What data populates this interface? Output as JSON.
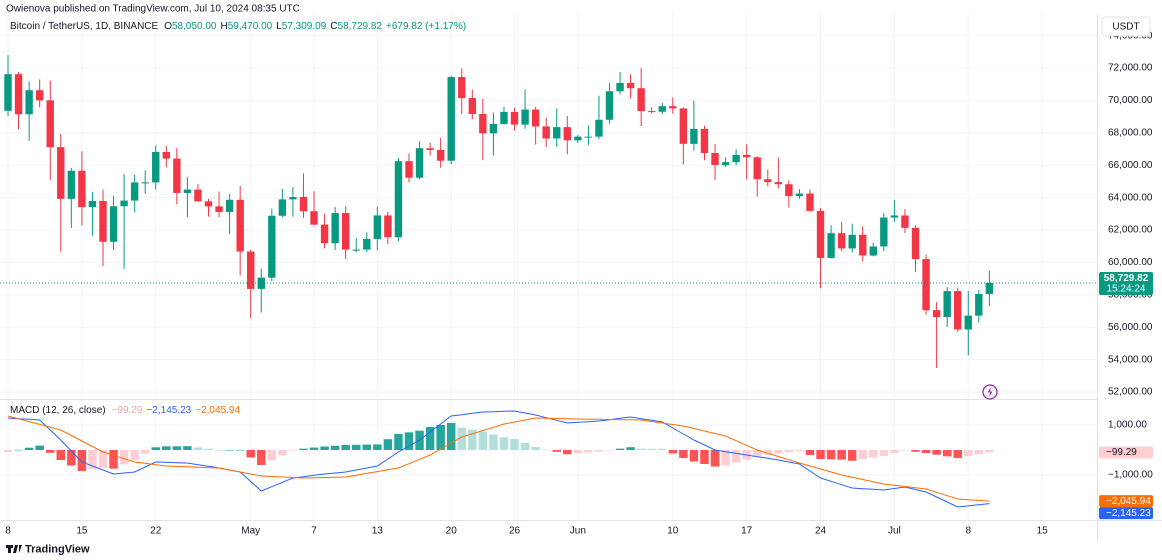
{
  "header": {
    "publisher": "Owienova published on TradingView.com, Jul 10, 2024 08:35 UTC",
    "brand": "TradingView"
  },
  "chart_data": [
    {
      "type": "candlestick",
      "title": "Bitcoin / TetherUS, 1D, BINANCE",
      "legend": [
        {
          "key": "O",
          "label": "58,050.00"
        },
        {
          "key": "H",
          "label": "59,470.00"
        },
        {
          "key": "L",
          "label": "57,309.09"
        },
        {
          "key": "C",
          "label": "58,729.82"
        }
      ],
      "change": "+679.82 (+1.17%)",
      "currency": "USDT",
      "countdown": "15:24:24",
      "up_color": "#089981",
      "down_color": "#f23645",
      "open": [
        69360,
        71620,
        69146,
        70631,
        70006,
        67116,
        63924,
        65661,
        63419,
        63793,
        61277,
        63470,
        63818,
        64941,
        64941,
        66819,
        66414,
        64289,
        64498,
        63770,
        63462,
        63118,
        63866,
        60672,
        58364,
        59060,
        62882,
        63892,
        64038,
        63161,
        62334,
        61187,
        63049,
        60792,
        60793,
        61448,
        62901,
        61552,
        66250,
        65231,
        67051,
        66940,
        66278,
        71446,
        70148,
        69166,
        67969,
        68549,
        69290,
        68507,
        69436,
        68398,
        67652,
        68352,
        67540,
        67766,
        67766,
        68809,
        70567,
        71082,
        70757,
        69342,
        69305,
        69648,
        69508,
        67321,
        68243,
        66756,
        66011,
        66191,
        66639,
        66490,
        65140,
        64960,
        64828,
        64096,
        64252,
        63180,
        60277,
        61806,
        60864,
        61706,
        60427,
        60986,
        62772,
        62899,
        62135,
        60208,
        57050,
        56628,
        58230,
        55857,
        56714,
        58050
      ],
      "high": [
        72797,
        71758,
        71172,
        71305,
        71227,
        67932,
        65840,
        66867,
        64365,
        64499,
        64125,
        65450,
        65419,
        65695,
        67233,
        67199,
        67075,
        65297,
        64837,
        63923,
        64370,
        64228,
        64734,
        60780,
        59625,
        63320,
        64545,
        64646,
        65494,
        64390,
        62999,
        63421,
        63469,
        61490,
        61850,
        63450,
        63118,
        66444,
        66720,
        67459,
        67400,
        67700,
        71515,
        71979,
        70666,
        70096,
        69250,
        69610,
        69562,
        70687,
        69591,
        68935,
        69500,
        69044,
        67857,
        68460,
        70288,
        71063,
        71758,
        71625,
        71997,
        69582,
        69852,
        70195,
        69563,
        69999,
        68449,
        67320,
        66495,
        66983,
        67298,
        66556,
        65738,
        66482,
        65067,
        64526,
        64520,
        63370,
        62293,
        62487,
        62389,
        62225,
        61224,
        63058,
        63861,
        63288,
        62285,
        60498,
        57546,
        58475,
        58449,
        58236,
        58296,
        59470
      ],
      "low": [
        69043,
        68210,
        67518,
        69567,
        65086,
        60660,
        62134,
        62274,
        61650,
        59768,
        60775,
        59600,
        63090,
        64240,
        64500,
        65865,
        63589,
        62795,
        63747,
        62824,
        62781,
        61765,
        59191,
        56552,
        56911,
        58848,
        62800,
        62822,
        62746,
        62285,
        60866,
        60769,
        60187,
        60628,
        60629,
        60750,
        61142,
        61330,
        64944,
        65119,
        66600,
        65857,
        66060,
        69163,
        68842,
        66312,
        66600,
        68500,
        68128,
        68250,
        67277,
        67124,
        67128,
        66670,
        67386,
        67257,
        67613,
        68567,
        70383,
        70119,
        68420,
        69208,
        69164,
        69180,
        66051,
        66902,
        66304,
        65078,
        65891,
        66000,
        65130,
        64066,
        64693,
        64559,
        63379,
        63929,
        63100,
        58402,
        60239,
        60712,
        60606,
        60063,
        60383,
        60712,
        62497,
        61806,
        59400,
        56771,
        53485,
        56018,
        55724,
        54260,
        56289,
        57309.09
      ],
      "close": [
        71620,
        69146,
        70631,
        70006,
        67116,
        63924,
        65661,
        63419,
        63793,
        61277,
        63470,
        63818,
        64941,
        64941,
        66819,
        66414,
        64289,
        64498,
        63770,
        63462,
        63118,
        63866,
        60672,
        58364,
        59060,
        62882,
        63892,
        64038,
        63161,
        62334,
        61187,
        63049,
        60792,
        60793,
        61448,
        62901,
        61552,
        66250,
        65231,
        67051,
        66940,
        66278,
        71446,
        70148,
        69166,
        67969,
        68549,
        69290,
        68507,
        69436,
        68398,
        67652,
        68352,
        67540,
        67766,
        67766,
        68809,
        70567,
        71082,
        70757,
        69342,
        69305,
        69648,
        69508,
        67321,
        68243,
        66756,
        66011,
        66191,
        66639,
        66490,
        65140,
        64960,
        64828,
        64096,
        64252,
        63180,
        60277,
        61806,
        60864,
        61706,
        60427,
        60986,
        62772,
        62899,
        62135,
        60208,
        57050,
        56628,
        58230,
        55857,
        56714,
        58050,
        58729.82
      ],
      "ylim": [
        51630,
        74350
      ],
      "yticks": [
        {
          "value": 52000,
          "label": "52,000.00"
        },
        {
          "value": 54000,
          "label": "54,000.00"
        },
        {
          "value": 56000,
          "label": "56,000.00"
        },
        {
          "value": 58000,
          "label": "58,000.00"
        },
        {
          "value": 60000,
          "label": "60,000.00"
        },
        {
          "value": 62000,
          "label": "62,000.00"
        },
        {
          "value": 64000,
          "label": "64,000.00"
        },
        {
          "value": 66000,
          "label": "66,000.00"
        },
        {
          "value": 68000,
          "label": "68,000.00"
        },
        {
          "value": 70000,
          "label": "70,000.00"
        },
        {
          "value": 72000,
          "label": "72,000.00"
        },
        {
          "value": 74000,
          "label": "74,000.00"
        }
      ],
      "xlim": [
        -0.76,
        103.2
      ],
      "xticks": [
        {
          "value": 0,
          "label": "8"
        },
        {
          "value": 7,
          "label": "15"
        },
        {
          "value": 14,
          "label": "22"
        },
        {
          "value": 23,
          "label": "May"
        },
        {
          "value": 29,
          "label": "7"
        },
        {
          "value": 35,
          "label": "13"
        },
        {
          "value": 42,
          "label": "20"
        },
        {
          "value": 48,
          "label": "26"
        },
        {
          "value": 54,
          "label": "Jun"
        },
        {
          "value": 63,
          "label": "10"
        },
        {
          "value": 70,
          "label": "17"
        },
        {
          "value": 77,
          "label": "24"
        },
        {
          "value": 84,
          "label": "Jul"
        },
        {
          "value": 91,
          "label": "8"
        },
        {
          "value": 98,
          "label": "15"
        }
      ],
      "grid": true
    },
    {
      "type": "macd",
      "title": "MACD (12, 26, close)",
      "histogram": {
        "colors": [
          "#26a69a",
          "#b2dfdb",
          "#ff5252",
          "#ffcdd2"
        ],
        "last_label": "−99.29",
        "values": [
          -80,
          5,
          91,
          176,
          -112,
          -400,
          -620,
          -840,
          -780,
          -720,
          -747,
          -573,
          -400,
          -147,
          107,
          147,
          149,
          152,
          101,
          51,
          0,
          0,
          0,
          -300,
          -600,
          -407,
          -213,
          -20,
          53,
          97,
          140,
          170,
          200,
          208,
          216,
          224,
          432,
          640,
          707,
          773,
          920,
          1000,
          1080,
          893,
          817,
          740,
          623,
          507,
          440,
          280,
          120,
          23,
          -73,
          -170,
          -133,
          -100,
          -67,
          -7,
          54,
          113,
          53,
          47,
          40,
          -140,
          -320,
          -460,
          -560,
          -660,
          -627,
          -506,
          -387,
          -267,
          -203,
          -140,
          -90,
          -40,
          -200,
          -360,
          -373,
          -387,
          -430,
          -367,
          -303,
          -240,
          -130,
          -20,
          -70,
          -120,
          -187,
          -253,
          -320,
          -246,
          -173,
          -99.29
        ]
      },
      "macd": {
        "color": "#2962ff",
        "last_label": "−2,145.23",
        "values": [
          1280,
          1253,
          1227,
          1200,
          800,
          400,
          -40,
          -480,
          -640,
          -800,
          -960,
          -920,
          -880,
          -680,
          -480,
          -493,
          -507,
          -520,
          -587,
          -653,
          -720,
          -800,
          -880,
          -1260,
          -1640,
          -1467,
          -1293,
          -1120,
          -1067,
          -1013,
          -960,
          -920,
          -880,
          -800,
          -720,
          -640,
          -360,
          -80,
          160,
          400,
          720,
          1040,
          1360,
          1413,
          1467,
          1520,
          1533,
          1547,
          1560,
          1480,
          1400,
          1293,
          1187,
          1080,
          1107,
          1133,
          1160,
          1213,
          1267,
          1320,
          1253,
          1187,
          1120,
          880,
          640,
          400,
          200,
          0,
          -67,
          -133,
          -200,
          -267,
          -333,
          -400,
          -480,
          -560,
          -840,
          -1120,
          -1253,
          -1387,
          -1520,
          -1547,
          -1573,
          -1600,
          -1540,
          -1480,
          -1580,
          -1680,
          -1880,
          -2080,
          -2280,
          -2235,
          -2190,
          -2145.23
        ]
      },
      "signal": {
        "color": "#ff6d00",
        "last_label": "−2,045.94",
        "values": [
          1360,
          1248,
          1136,
          1024,
          912,
          800,
          580,
          360,
          140,
          -80,
          -213,
          -347,
          -480,
          -533,
          -587,
          -640,
          -656,
          -672,
          -688,
          -704,
          -720,
          -800,
          -880,
          -960,
          -1040,
          -1060,
          -1080,
          -1100,
          -1120,
          -1110,
          -1100,
          -1090,
          -1080,
          -1008,
          -936,
          -864,
          -792,
          -720,
          -547,
          -373,
          -200,
          40,
          280,
          520,
          650,
          780,
          910,
          1040,
          1120,
          1200,
          1280,
          1270,
          1260,
          1250,
          1240,
          1233,
          1227,
          1220,
          1213,
          1207,
          1200,
          1140,
          1080,
          1020,
          960,
          860,
          760,
          660,
          560,
          373,
          187,
          0,
          -130,
          -260,
          -390,
          -520,
          -640,
          -760,
          -880,
          -1000,
          -1090,
          -1180,
          -1270,
          -1360,
          -1410,
          -1460,
          -1510,
          -1560,
          -1693,
          -1827,
          -1960,
          -1989,
          -2017,
          -2045.94
        ]
      },
      "ylim": [
        -2720,
        2000
      ],
      "yticks": [
        {
          "value": 1000,
          "label": "1,000.00"
        },
        {
          "value": -1000,
          "label": "−1,000.00"
        }
      ]
    }
  ]
}
